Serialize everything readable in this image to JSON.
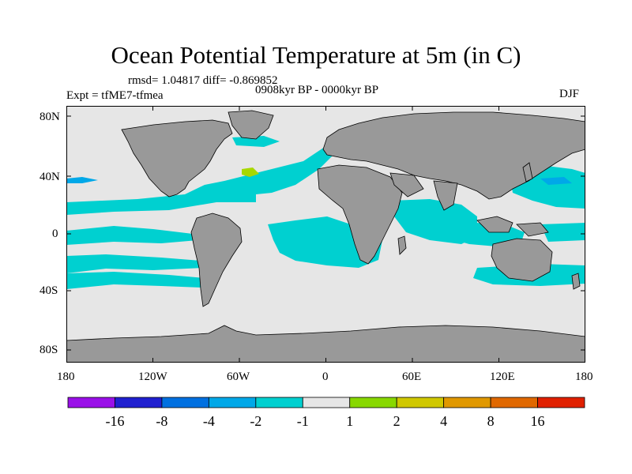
{
  "title": "Ocean Potential Temperature at 5m (in C)",
  "stats_line": "rmsd= 1.04817  diff= -0.869852",
  "experiment": "Expt = tfME7-tfmea",
  "period": "0908kyr BP - 0000kyr BP",
  "season": "DJF",
  "map": {
    "lat_ticks": [
      "80N",
      "40N",
      "0",
      "40S",
      "80S"
    ],
    "lon_ticks": [
      "180",
      "120W",
      "60W",
      "0",
      "60E",
      "120E",
      "180"
    ],
    "colors": {
      "land": "#999999",
      "ocean_neutral": "#e6e6e6",
      "cyan": "#00d0d0",
      "lightblue": "#00a8e8",
      "yellowgreen": "#a8d800"
    }
  },
  "colorbar": {
    "labels": [
      "-16",
      "-8",
      "-4",
      "-2",
      "-1",
      "1",
      "2",
      "4",
      "8",
      "16"
    ],
    "colors": [
      "#9a10e8",
      "#2020d0",
      "#0070e0",
      "#00a8e8",
      "#00d0d0",
      "#e6e6e6",
      "#88d800",
      "#d0c800",
      "#e09800",
      "#e06800",
      "#e02000"
    ]
  }
}
